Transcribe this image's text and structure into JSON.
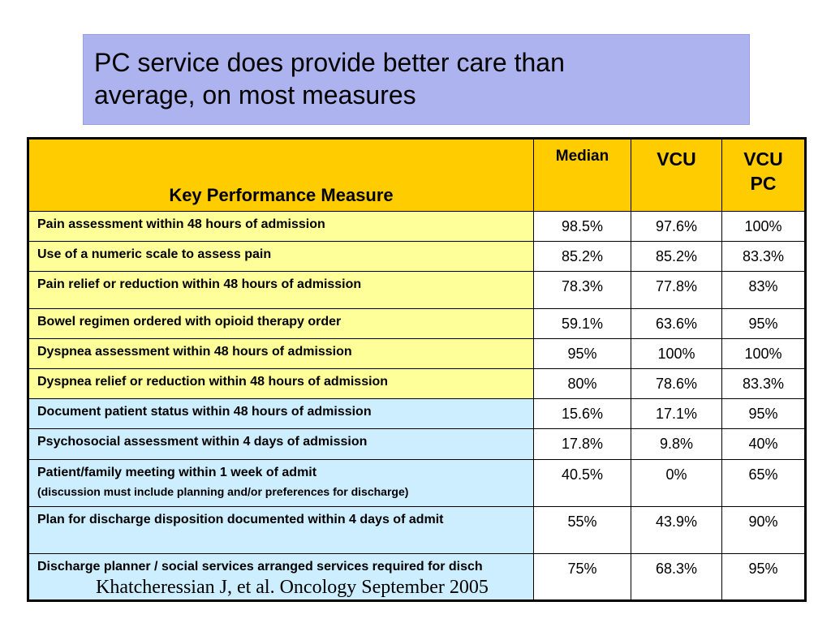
{
  "title": {
    "line1": "PC service does provide better care than",
    "line2": "average, on most measures"
  },
  "table": {
    "headers": {
      "measure": "Key Performance Measure",
      "median": "Median",
      "vcu": "VCU",
      "vcu_pc_line1": "VCU",
      "vcu_pc_line2": "PC"
    },
    "rows": [
      {
        "measure": "Pain assessment within 48 hours of admission",
        "median": "98.5%",
        "vcu": "97.6%",
        "vcu_pc": "100%"
      },
      {
        "measure": "Use of a numeric scale to assess pain",
        "median": "85.2%",
        "vcu": "85.2%",
        "vcu_pc": "83.3%"
      },
      {
        "measure": "Pain relief or reduction within 48 hours of admission",
        "median": "78.3%",
        "vcu": "77.8%",
        "vcu_pc": "83%"
      },
      {
        "measure": "Bowel regimen ordered with opioid therapy order",
        "median": "59.1%",
        "vcu": "63.6%",
        "vcu_pc": "95%"
      },
      {
        "measure": "Dyspnea assessment within 48 hours of admission",
        "median": "95%",
        "vcu": "100%",
        "vcu_pc": "100%"
      },
      {
        "measure": "Dyspnea relief or reduction within 48 hours of admission",
        "median": "80%",
        "vcu": "78.6%",
        "vcu_pc": "83.3%"
      },
      {
        "measure": "Document patient status within 48 hours of admission",
        "median": "15.6%",
        "vcu": "17.1%",
        "vcu_pc": "95%"
      },
      {
        "measure": "Psychosocial assessment within 4 days of admission",
        "median": "17.8%",
        "vcu": "9.8%",
        "vcu_pc": "40%"
      },
      {
        "measure": "Patient/family meeting within 1 week of admit",
        "sub": "(discussion must include planning and/or preferences for discharge)",
        "median": "40.5%",
        "vcu": "0%",
        "vcu_pc": "65%"
      },
      {
        "measure": "Plan for discharge disposition documented within 4 days of admit",
        "median": "55%",
        "vcu": "43.9%",
        "vcu_pc": "90%"
      },
      {
        "measure": "Discharge planner / social services arranged services required for disch",
        "median": "75%",
        "vcu": "68.3%",
        "vcu_pc": "95%"
      }
    ]
  },
  "citation": "Khatcheressian J, et al. Oncology September 2005",
  "colors": {
    "title_bg": "#adb3ee",
    "header_bg": "#ffcc00",
    "pain_rows_bg": "#ffff99",
    "other_rows_bg": "#cceeff"
  }
}
